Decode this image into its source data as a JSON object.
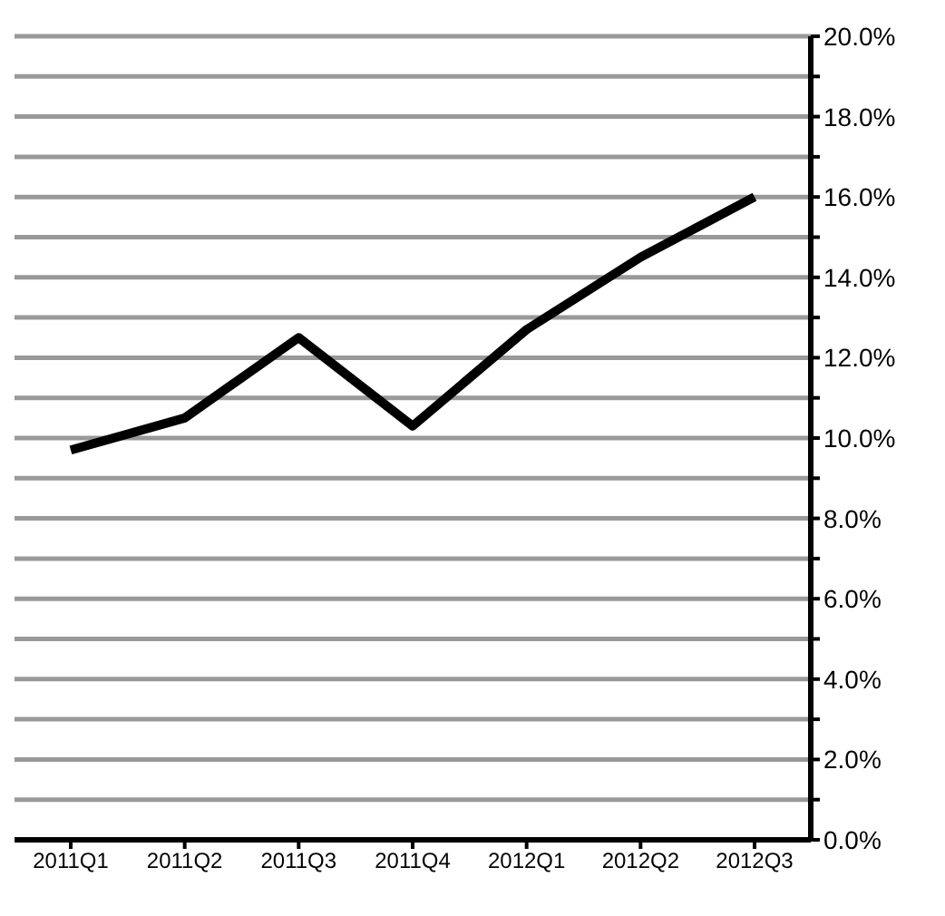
{
  "chart_data": {
    "type": "line",
    "categories": [
      "2011Q1",
      "2011Q2",
      "2011Q3",
      "2011Q4",
      "2012Q1",
      "2012Q2",
      "2012Q3"
    ],
    "series": [
      {
        "color": "#000000",
        "values": [
          9.7,
          10.5,
          12.5,
          10.3,
          12.7,
          14.5,
          16.0
        ]
      }
    ],
    "ylim": [
      0,
      20
    ],
    "yticks": [
      {
        "value": 0,
        "label": "0.0%"
      },
      {
        "value": 1,
        "label": null
      },
      {
        "value": 2,
        "label": "2.0%"
      },
      {
        "value": 3,
        "label": null
      },
      {
        "value": 4,
        "label": "4.0%"
      },
      {
        "value": 5,
        "label": null
      },
      {
        "value": 6,
        "label": "6.0%"
      },
      {
        "value": 7,
        "label": null
      },
      {
        "value": 8,
        "label": "8.0%"
      },
      {
        "value": 9,
        "label": null
      },
      {
        "value": 10,
        "label": "10.0%"
      },
      {
        "value": 11,
        "label": null
      },
      {
        "value": 12,
        "label": "12.0%"
      },
      {
        "value": 13,
        "label": null
      },
      {
        "value": 14,
        "label": "14.0%"
      },
      {
        "value": 15,
        "label": null
      },
      {
        "value": 16,
        "label": "16.0%"
      },
      {
        "value": 17,
        "label": null
      },
      {
        "value": 18,
        "label": "18.0%"
      },
      {
        "value": 19,
        "label": null
      },
      {
        "value": 20,
        "label": "20.0%"
      }
    ],
    "grid": "y",
    "legend": false,
    "marker": "none",
    "line_style": "solid"
  }
}
